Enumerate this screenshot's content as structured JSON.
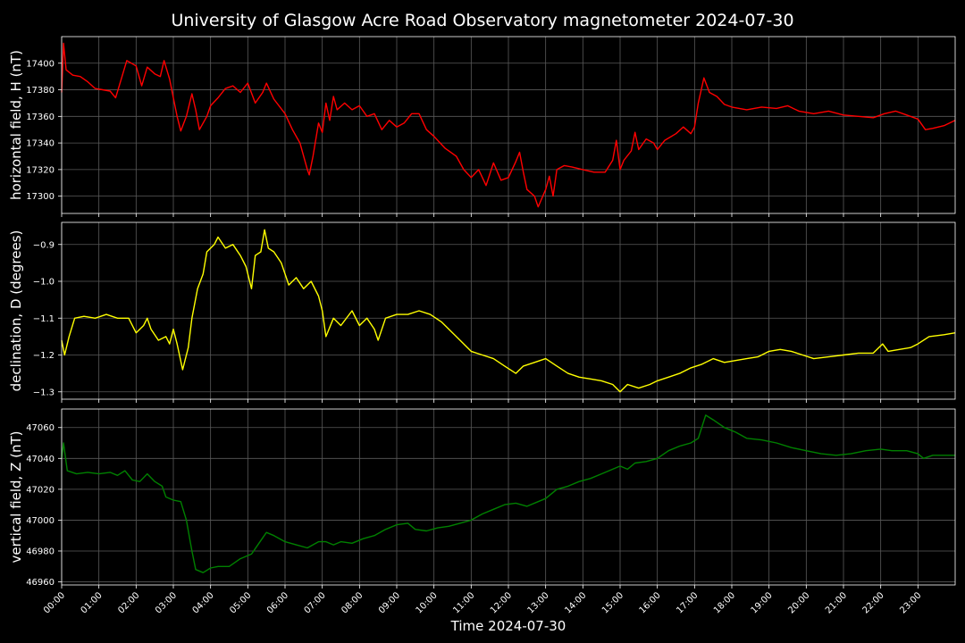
{
  "chart_data": [
    {
      "type": "line",
      "title": "University of Glasgow Acre Road Observatory magnetometer 2024-07-30",
      "ylabel": "horizontal field, H (nT)",
      "xlabel": "",
      "color": "#ff0000",
      "ylim": [
        17287,
        17420
      ],
      "yticks": [
        17300,
        17320,
        17340,
        17360,
        17380,
        17400
      ],
      "ytick_labels": [
        "17300",
        "17320",
        "17340",
        "17360",
        "17380",
        "17400"
      ],
      "grid": true,
      "points": [
        [
          0.0,
          17378
        ],
        [
          0.05,
          17415
        ],
        [
          0.12,
          17395
        ],
        [
          0.3,
          17391
        ],
        [
          0.5,
          17390
        ],
        [
          0.7,
          17386
        ],
        [
          0.9,
          17381
        ],
        [
          1.1,
          17380
        ],
        [
          1.3,
          17379
        ],
        [
          1.45,
          17374
        ],
        [
          1.6,
          17388
        ],
        [
          1.75,
          17402
        ],
        [
          2.0,
          17398
        ],
        [
          2.15,
          17383
        ],
        [
          2.3,
          17397
        ],
        [
          2.5,
          17392
        ],
        [
          2.65,
          17390
        ],
        [
          2.75,
          17402
        ],
        [
          2.9,
          17388
        ],
        [
          3.1,
          17360
        ],
        [
          3.2,
          17349
        ],
        [
          3.35,
          17360
        ],
        [
          3.5,
          17377
        ],
        [
          3.6,
          17365
        ],
        [
          3.7,
          17350
        ],
        [
          3.9,
          17360
        ],
        [
          4.0,
          17368
        ],
        [
          4.2,
          17374
        ],
        [
          4.4,
          17381
        ],
        [
          4.6,
          17383
        ],
        [
          4.8,
          17378
        ],
        [
          5.0,
          17385
        ],
        [
          5.2,
          17370
        ],
        [
          5.4,
          17378
        ],
        [
          5.5,
          17385
        ],
        [
          5.7,
          17373
        ],
        [
          6.0,
          17362
        ],
        [
          6.2,
          17350
        ],
        [
          6.4,
          17340
        ],
        [
          6.6,
          17320
        ],
        [
          6.65,
          17316
        ],
        [
          6.75,
          17330
        ],
        [
          6.9,
          17355
        ],
        [
          7.0,
          17348
        ],
        [
          7.1,
          17370
        ],
        [
          7.2,
          17357
        ],
        [
          7.3,
          17375
        ],
        [
          7.4,
          17365
        ],
        [
          7.6,
          17370
        ],
        [
          7.8,
          17365
        ],
        [
          8.0,
          17368
        ],
        [
          8.2,
          17360
        ],
        [
          8.4,
          17362
        ],
        [
          8.6,
          17350
        ],
        [
          8.8,
          17357
        ],
        [
          9.0,
          17352
        ],
        [
          9.2,
          17355
        ],
        [
          9.4,
          17362
        ],
        [
          9.6,
          17362
        ],
        [
          9.8,
          17350
        ],
        [
          10.0,
          17345
        ],
        [
          10.3,
          17336
        ],
        [
          10.6,
          17330
        ],
        [
          10.8,
          17320
        ],
        [
          11.0,
          17314
        ],
        [
          11.2,
          17320
        ],
        [
          11.4,
          17308
        ],
        [
          11.6,
          17325
        ],
        [
          11.8,
          17312
        ],
        [
          12.0,
          17314
        ],
        [
          12.2,
          17326
        ],
        [
          12.3,
          17333
        ],
        [
          12.4,
          17318
        ],
        [
          12.5,
          17305
        ],
        [
          12.7,
          17300
        ],
        [
          12.8,
          17292
        ],
        [
          13.0,
          17305
        ],
        [
          13.1,
          17315
        ],
        [
          13.2,
          17300
        ],
        [
          13.3,
          17320
        ],
        [
          13.5,
          17323
        ],
        [
          13.7,
          17322
        ],
        [
          14.0,
          17320
        ],
        [
          14.3,
          17318
        ],
        [
          14.6,
          17318
        ],
        [
          14.8,
          17327
        ],
        [
          14.9,
          17342
        ],
        [
          15.0,
          17320
        ],
        [
          15.1,
          17327
        ],
        [
          15.3,
          17334
        ],
        [
          15.4,
          17348
        ],
        [
          15.5,
          17335
        ],
        [
          15.7,
          17343
        ],
        [
          15.9,
          17340
        ],
        [
          16.0,
          17335
        ],
        [
          16.2,
          17342
        ],
        [
          16.5,
          17347
        ],
        [
          16.7,
          17352
        ],
        [
          16.9,
          17347
        ],
        [
          17.0,
          17352
        ],
        [
          17.1,
          17370
        ],
        [
          17.25,
          17389
        ],
        [
          17.4,
          17378
        ],
        [
          17.6,
          17375
        ],
        [
          17.8,
          17369
        ],
        [
          18.0,
          17367
        ],
        [
          18.4,
          17365
        ],
        [
          18.8,
          17367
        ],
        [
          19.2,
          17366
        ],
        [
          19.5,
          17368
        ],
        [
          19.8,
          17364
        ],
        [
          20.2,
          17362
        ],
        [
          20.6,
          17364
        ],
        [
          21.0,
          17361
        ],
        [
          21.4,
          17360
        ],
        [
          21.8,
          17359
        ],
        [
          22.1,
          17362
        ],
        [
          22.4,
          17364
        ],
        [
          22.7,
          17361
        ],
        [
          23.0,
          17358
        ],
        [
          23.2,
          17350
        ],
        [
          23.4,
          17351
        ],
        [
          23.7,
          17353
        ],
        [
          24.0,
          17357
        ]
      ]
    },
    {
      "type": "line",
      "ylabel": "declination, D (degrees)",
      "xlabel": "",
      "color": "#ffff00",
      "ylim": [
        -1.32,
        -0.84
      ],
      "yticks": [
        -1.3,
        -1.2,
        -1.1,
        -1.0,
        -0.9
      ],
      "ytick_labels": [
        "−1.3",
        "−1.2",
        "−1.1",
        "−1.0",
        "−0.9"
      ],
      "grid": true,
      "points": [
        [
          0.0,
          -1.16
        ],
        [
          0.08,
          -1.2
        ],
        [
          0.2,
          -1.15
        ],
        [
          0.35,
          -1.1
        ],
        [
          0.6,
          -1.095
        ],
        [
          0.9,
          -1.1
        ],
        [
          1.2,
          -1.09
        ],
        [
          1.5,
          -1.1
        ],
        [
          1.8,
          -1.1
        ],
        [
          2.0,
          -1.14
        ],
        [
          2.2,
          -1.12
        ],
        [
          2.3,
          -1.1
        ],
        [
          2.4,
          -1.13
        ],
        [
          2.6,
          -1.16
        ],
        [
          2.8,
          -1.15
        ],
        [
          2.9,
          -1.17
        ],
        [
          3.0,
          -1.13
        ],
        [
          3.1,
          -1.17
        ],
        [
          3.25,
          -1.24
        ],
        [
          3.4,
          -1.18
        ],
        [
          3.5,
          -1.1
        ],
        [
          3.65,
          -1.02
        ],
        [
          3.8,
          -0.98
        ],
        [
          3.9,
          -0.92
        ],
        [
          4.1,
          -0.9
        ],
        [
          4.2,
          -0.88
        ],
        [
          4.4,
          -0.91
        ],
        [
          4.6,
          -0.9
        ],
        [
          4.8,
          -0.93
        ],
        [
          4.95,
          -0.96
        ],
        [
          5.1,
          -1.02
        ],
        [
          5.2,
          -0.93
        ],
        [
          5.35,
          -0.92
        ],
        [
          5.45,
          -0.86
        ],
        [
          5.55,
          -0.91
        ],
        [
          5.7,
          -0.92
        ],
        [
          5.9,
          -0.95
        ],
        [
          6.1,
          -1.01
        ],
        [
          6.3,
          -0.99
        ],
        [
          6.5,
          -1.02
        ],
        [
          6.7,
          -1.0
        ],
        [
          6.9,
          -1.04
        ],
        [
          7.0,
          -1.08
        ],
        [
          7.1,
          -1.15
        ],
        [
          7.3,
          -1.1
        ],
        [
          7.5,
          -1.12
        ],
        [
          7.8,
          -1.08
        ],
        [
          8.0,
          -1.12
        ],
        [
          8.2,
          -1.1
        ],
        [
          8.4,
          -1.13
        ],
        [
          8.5,
          -1.16
        ],
        [
          8.7,
          -1.1
        ],
        [
          9.0,
          -1.09
        ],
        [
          9.3,
          -1.09
        ],
        [
          9.6,
          -1.08
        ],
        [
          9.9,
          -1.09
        ],
        [
          10.2,
          -1.11
        ],
        [
          10.5,
          -1.14
        ],
        [
          10.8,
          -1.17
        ],
        [
          11.0,
          -1.19
        ],
        [
          11.3,
          -1.2
        ],
        [
          11.6,
          -1.21
        ],
        [
          11.9,
          -1.23
        ],
        [
          12.2,
          -1.25
        ],
        [
          12.4,
          -1.23
        ],
        [
          12.7,
          -1.22
        ],
        [
          13.0,
          -1.21
        ],
        [
          13.3,
          -1.23
        ],
        [
          13.6,
          -1.25
        ],
        [
          13.9,
          -1.26
        ],
        [
          14.2,
          -1.265
        ],
        [
          14.5,
          -1.27
        ],
        [
          14.8,
          -1.28
        ],
        [
          15.0,
          -1.3
        ],
        [
          15.2,
          -1.28
        ],
        [
          15.5,
          -1.29
        ],
        [
          15.8,
          -1.28
        ],
        [
          16.0,
          -1.27
        ],
        [
          16.3,
          -1.26
        ],
        [
          16.6,
          -1.25
        ],
        [
          16.9,
          -1.235
        ],
        [
          17.2,
          -1.225
        ],
        [
          17.5,
          -1.21
        ],
        [
          17.8,
          -1.22
        ],
        [
          18.1,
          -1.215
        ],
        [
          18.4,
          -1.21
        ],
        [
          18.7,
          -1.205
        ],
        [
          19.0,
          -1.19
        ],
        [
          19.3,
          -1.185
        ],
        [
          19.6,
          -1.19
        ],
        [
          19.9,
          -1.2
        ],
        [
          20.2,
          -1.21
        ],
        [
          20.6,
          -1.205
        ],
        [
          21.0,
          -1.2
        ],
        [
          21.4,
          -1.195
        ],
        [
          21.8,
          -1.195
        ],
        [
          22.05,
          -1.17
        ],
        [
          22.2,
          -1.19
        ],
        [
          22.5,
          -1.185
        ],
        [
          22.8,
          -1.18
        ],
        [
          23.0,
          -1.17
        ],
        [
          23.3,
          -1.15
        ],
        [
          23.7,
          -1.145
        ],
        [
          24.0,
          -1.14
        ]
      ]
    },
    {
      "type": "line",
      "ylabel": "vertical field, Z (nT)",
      "xlabel": "Time 2024-07-30",
      "color": "#008000",
      "ylim": [
        46958,
        47072
      ],
      "yticks": [
        46960,
        46980,
        47000,
        47020,
        47040,
        47060
      ],
      "ytick_labels": [
        "46960",
        "46980",
        "47000",
        "47020",
        "47040",
        "47060"
      ],
      "xticks": [
        0,
        1,
        2,
        3,
        4,
        5,
        6,
        7,
        8,
        9,
        10,
        11,
        12,
        13,
        14,
        15,
        16,
        17,
        18,
        19,
        20,
        21,
        22,
        23
      ],
      "xtick_labels": [
        "00:00",
        "01:00",
        "02:00",
        "03:00",
        "04:00",
        "05:00",
        "06:00",
        "07:00",
        "08:00",
        "09:00",
        "10:00",
        "11:00",
        "12:00",
        "13:00",
        "14:00",
        "15:00",
        "16:00",
        "17:00",
        "18:00",
        "19:00",
        "20:00",
        "21:00",
        "22:00",
        "23:00"
      ],
      "grid": true,
      "points": [
        [
          0.0,
          47040
        ],
        [
          0.05,
          47050
        ],
        [
          0.15,
          47032
        ],
        [
          0.4,
          47030
        ],
        [
          0.7,
          47031
        ],
        [
          1.0,
          47030
        ],
        [
          1.3,
          47031
        ],
        [
          1.5,
          47029
        ],
        [
          1.7,
          47032
        ],
        [
          1.9,
          47026
        ],
        [
          2.1,
          47025
        ],
        [
          2.3,
          47030
        ],
        [
          2.5,
          47025
        ],
        [
          2.7,
          47022
        ],
        [
          2.8,
          47015
        ],
        [
          3.0,
          47013
        ],
        [
          3.2,
          47012
        ],
        [
          3.35,
          47000
        ],
        [
          3.5,
          46980
        ],
        [
          3.6,
          46968
        ],
        [
          3.8,
          46966
        ],
        [
          4.0,
          46969
        ],
        [
          4.2,
          46970
        ],
        [
          4.5,
          46970
        ],
        [
          4.8,
          46975
        ],
        [
          5.1,
          46978
        ],
        [
          5.3,
          46985
        ],
        [
          5.5,
          46992
        ],
        [
          5.7,
          46990
        ],
        [
          6.0,
          46986
        ],
        [
          6.3,
          46984
        ],
        [
          6.6,
          46982
        ],
        [
          6.9,
          46986
        ],
        [
          7.1,
          46986
        ],
        [
          7.3,
          46984
        ],
        [
          7.5,
          46986
        ],
        [
          7.8,
          46985
        ],
        [
          8.1,
          46988
        ],
        [
          8.4,
          46990
        ],
        [
          8.7,
          46994
        ],
        [
          9.0,
          46997
        ],
        [
          9.3,
          46998
        ],
        [
          9.5,
          46994
        ],
        [
          9.8,
          46993
        ],
        [
          10.1,
          46995
        ],
        [
          10.4,
          46996
        ],
        [
          10.7,
          46998
        ],
        [
          11.0,
          47000
        ],
        [
          11.3,
          47004
        ],
        [
          11.6,
          47007
        ],
        [
          11.9,
          47010
        ],
        [
          12.2,
          47011
        ],
        [
          12.5,
          47009
        ],
        [
          12.8,
          47012
        ],
        [
          13.0,
          47014
        ],
        [
          13.3,
          47020
        ],
        [
          13.6,
          47022
        ],
        [
          13.9,
          47025
        ],
        [
          14.2,
          47027
        ],
        [
          14.5,
          47030
        ],
        [
          14.8,
          47033
        ],
        [
          15.0,
          47035
        ],
        [
          15.2,
          47033
        ],
        [
          15.4,
          47037
        ],
        [
          15.7,
          47038
        ],
        [
          16.0,
          47040
        ],
        [
          16.3,
          47045
        ],
        [
          16.6,
          47048
        ],
        [
          16.9,
          47050
        ],
        [
          17.1,
          47053
        ],
        [
          17.3,
          47068
        ],
        [
          17.5,
          47065
        ],
        [
          17.8,
          47060
        ],
        [
          18.1,
          47057
        ],
        [
          18.4,
          47053
        ],
        [
          18.8,
          47052
        ],
        [
          19.2,
          47050
        ],
        [
          19.6,
          47047
        ],
        [
          20.0,
          47045
        ],
        [
          20.4,
          47043
        ],
        [
          20.8,
          47042
        ],
        [
          21.2,
          47043
        ],
        [
          21.6,
          47045
        ],
        [
          22.0,
          47046
        ],
        [
          22.3,
          47045
        ],
        [
          22.7,
          47045
        ],
        [
          23.0,
          47043
        ],
        [
          23.15,
          47040
        ],
        [
          23.4,
          47042
        ],
        [
          24.0,
          47042
        ]
      ]
    }
  ]
}
